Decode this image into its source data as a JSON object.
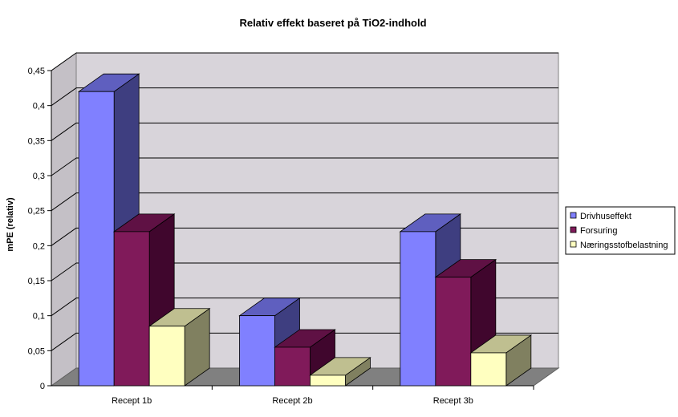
{
  "chart_data": {
    "type": "bar",
    "title": "Relativ effekt baseret på TiO2-indhold",
    "xlabel": "",
    "ylabel": "mPE (relativ)",
    "ylim": [
      0,
      0.45
    ],
    "yticks": [
      "0",
      "0,05",
      "0,1",
      "0,15",
      "0,2",
      "0,25",
      "0,3",
      "0,35",
      "0,4",
      "0,45"
    ],
    "categories": [
      "Recept 1b",
      "Recept 2b",
      "Recept 3b"
    ],
    "series": [
      {
        "name": "Drivhuseffekt",
        "values": [
          0.42,
          0.1,
          0.22
        ],
        "color": "#8080ff",
        "side": "#3e3e80",
        "top": "#5f5fbf"
      },
      {
        "name": "Forsuring",
        "values": [
          0.22,
          0.055,
          0.155
        ],
        "color": "#801a5a",
        "side": "#40062d",
        "top": "#5f1144"
      },
      {
        "name": "Næringsstofbelastning",
        "values": [
          0.085,
          0.015,
          0.047
        ],
        "color": "#ffffc0",
        "side": "#808060",
        "top": "#bfbf90"
      }
    ],
    "grid": true,
    "legend": "right"
  }
}
